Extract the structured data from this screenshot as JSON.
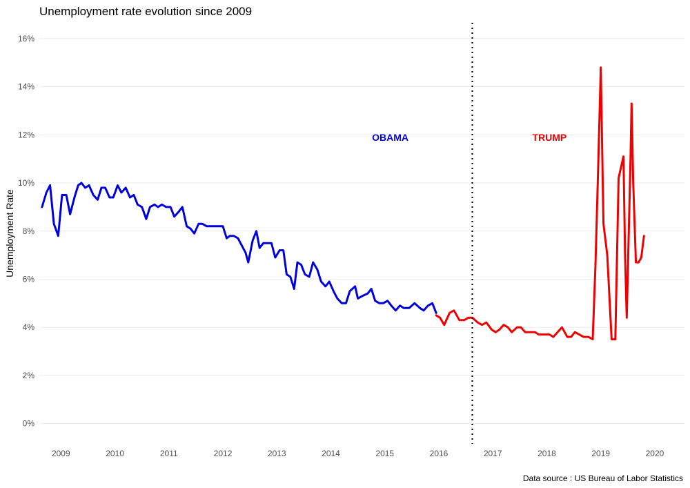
{
  "chart_data": {
    "type": "line",
    "title": "Unemployment rate evolution since 2009",
    "xlabel": "",
    "ylabel": "Unemployment Rate",
    "caption": "Data source : US Bureau of Labor Statistics",
    "xlim": [
      2008.6,
      2020.55
    ],
    "ylim": [
      -0.9,
      16.8
    ],
    "x_ticks": [
      2009,
      2010,
      2011,
      2012,
      2013,
      2014,
      2015,
      2016,
      2017,
      2018,
      2019,
      2020
    ],
    "x_tick_labels": [
      "2009",
      "2010",
      "2011",
      "2012",
      "2013",
      "2014",
      "2015",
      "2016",
      "2017",
      "2018",
      "2019",
      "2020"
    ],
    "y_ticks": [
      0,
      2,
      4,
      6,
      8,
      10,
      12,
      14,
      16
    ],
    "y_tick_labels": [
      "0%",
      "2%",
      "4%",
      "6%",
      "8%",
      "10%",
      "12%",
      "14%",
      "16%"
    ],
    "grid": true,
    "divider_x": 2016.62,
    "annotations": [
      {
        "text": "OBAMA",
        "x": 2015.1,
        "y": 11.9,
        "color": "#0000ee"
      },
      {
        "text": "TRUMP",
        "x": 2018.05,
        "y": 11.9,
        "color": "#ee0000"
      }
    ],
    "series": [
      {
        "color": "#0000dd",
        "points": [
          [
            2008.65,
            9.0
          ],
          [
            2008.73,
            9.6
          ],
          [
            2008.8,
            9.9
          ],
          [
            2008.87,
            8.3
          ],
          [
            2008.95,
            7.8
          ],
          [
            2009.02,
            9.5
          ],
          [
            2009.1,
            9.5
          ],
          [
            2009.17,
            8.7
          ],
          [
            2009.25,
            9.4
          ],
          [
            2009.32,
            9.9
          ],
          [
            2009.38,
            10.0
          ],
          [
            2009.45,
            9.8
          ],
          [
            2009.52,
            9.9
          ],
          [
            2009.6,
            9.5
          ],
          [
            2009.68,
            9.3
          ],
          [
            2009.75,
            9.8
          ],
          [
            2009.82,
            9.8
          ],
          [
            2009.9,
            9.4
          ],
          [
            2009.97,
            9.4
          ],
          [
            2010.05,
            9.9
          ],
          [
            2010.12,
            9.6
          ],
          [
            2010.2,
            9.8
          ],
          [
            2010.28,
            9.4
          ],
          [
            2010.35,
            9.5
          ],
          [
            2010.42,
            9.1
          ],
          [
            2010.5,
            9.0
          ],
          [
            2010.58,
            8.5
          ],
          [
            2010.65,
            9.0
          ],
          [
            2010.73,
            9.1
          ],
          [
            2010.8,
            9.0
          ],
          [
            2010.87,
            9.1
          ],
          [
            2010.95,
            9.0
          ],
          [
            2011.03,
            9.0
          ],
          [
            2011.1,
            8.6
          ],
          [
            2011.18,
            8.8
          ],
          [
            2011.25,
            9.0
          ],
          [
            2011.33,
            8.2
          ],
          [
            2011.4,
            8.1
          ],
          [
            2011.47,
            7.9
          ],
          [
            2011.55,
            8.3
          ],
          [
            2011.62,
            8.3
          ],
          [
            2011.7,
            8.2
          ],
          [
            2011.78,
            8.2
          ],
          [
            2011.85,
            8.2
          ],
          [
            2011.93,
            8.2
          ],
          [
            2012.0,
            8.2
          ],
          [
            2012.07,
            7.7
          ],
          [
            2012.13,
            7.8
          ],
          [
            2012.2,
            7.8
          ],
          [
            2012.28,
            7.7
          ],
          [
            2012.35,
            7.4
          ],
          [
            2012.42,
            7.1
          ],
          [
            2012.47,
            6.7
          ],
          [
            2012.55,
            7.6
          ],
          [
            2012.62,
            8.0
          ],
          [
            2012.68,
            7.3
          ],
          [
            2012.75,
            7.5
          ],
          [
            2012.82,
            7.5
          ],
          [
            2012.9,
            7.5
          ],
          [
            2012.97,
            6.9
          ],
          [
            2013.05,
            7.2
          ],
          [
            2013.12,
            7.2
          ],
          [
            2013.18,
            6.2
          ],
          [
            2013.25,
            6.1
          ],
          [
            2013.32,
            5.6
          ],
          [
            2013.38,
            6.7
          ],
          [
            2013.45,
            6.6
          ],
          [
            2013.52,
            6.2
          ],
          [
            2013.6,
            6.1
          ],
          [
            2013.67,
            6.7
          ],
          [
            2013.75,
            6.4
          ],
          [
            2013.82,
            5.9
          ],
          [
            2013.9,
            5.7
          ],
          [
            2013.97,
            5.9
          ],
          [
            2014.05,
            5.5
          ],
          [
            2014.12,
            5.2
          ],
          [
            2014.2,
            5.0
          ],
          [
            2014.28,
            5.0
          ],
          [
            2014.35,
            5.5
          ],
          [
            2014.45,
            5.7
          ],
          [
            2014.5,
            5.2
          ],
          [
            2014.58,
            5.3
          ],
          [
            2014.68,
            5.4
          ],
          [
            2014.75,
            5.6
          ],
          [
            2014.82,
            5.1
          ],
          [
            2014.9,
            5.0
          ],
          [
            2014.97,
            5.0
          ],
          [
            2015.05,
            5.1
          ],
          [
            2015.12,
            4.9
          ],
          [
            2015.2,
            4.7
          ],
          [
            2015.28,
            4.9
          ],
          [
            2015.35,
            4.8
          ],
          [
            2015.45,
            4.8
          ],
          [
            2015.55,
            5.0
          ],
          [
            2015.65,
            4.8
          ],
          [
            2015.72,
            4.7
          ],
          [
            2015.8,
            4.9
          ],
          [
            2015.88,
            5.0
          ],
          [
            2015.95,
            4.6
          ]
        ]
      },
      {
        "color": "#ee0000",
        "points": [
          [
            2015.95,
            4.5
          ],
          [
            2016.02,
            4.4
          ],
          [
            2016.1,
            4.1
          ],
          [
            2016.2,
            4.6
          ],
          [
            2016.28,
            4.7
          ],
          [
            2016.38,
            4.3
          ],
          [
            2016.47,
            4.3
          ],
          [
            2016.55,
            4.4
          ],
          [
            2016.62,
            4.4
          ],
          [
            2016.72,
            4.2
          ],
          [
            2016.8,
            4.1
          ],
          [
            2016.88,
            4.2
          ],
          [
            2016.98,
            3.9
          ],
          [
            2017.05,
            3.8
          ],
          [
            2017.12,
            3.9
          ],
          [
            2017.2,
            4.1
          ],
          [
            2017.28,
            4.0
          ],
          [
            2017.35,
            3.8
          ],
          [
            2017.45,
            4.0
          ],
          [
            2017.52,
            4.0
          ],
          [
            2017.6,
            3.8
          ],
          [
            2017.68,
            3.8
          ],
          [
            2017.78,
            3.8
          ],
          [
            2017.85,
            3.7
          ],
          [
            2017.95,
            3.7
          ],
          [
            2018.05,
            3.7
          ],
          [
            2018.12,
            3.6
          ],
          [
            2018.2,
            3.8
          ],
          [
            2018.28,
            4.0
          ],
          [
            2018.38,
            3.6
          ],
          [
            2018.45,
            3.6
          ],
          [
            2018.52,
            3.8
          ],
          [
            2018.6,
            3.7
          ],
          [
            2018.68,
            3.6
          ],
          [
            2018.77,
            3.6
          ],
          [
            2018.85,
            3.5
          ],
          [
            2018.9,
            6.5
          ],
          [
            2018.95,
            10.5
          ],
          [
            2019.0,
            14.8
          ],
          [
            2019.05,
            8.3
          ],
          [
            2019.12,
            7.0
          ],
          [
            2019.2,
            3.5
          ],
          [
            2019.27,
            3.5
          ],
          [
            2019.33,
            10.2
          ],
          [
            2019.4,
            10.9
          ],
          [
            2019.42,
            11.1
          ],
          [
            2019.45,
            7.0
          ],
          [
            2019.48,
            4.4
          ],
          [
            2019.55,
            11.0
          ],
          [
            2019.57,
            13.3
          ],
          [
            2019.6,
            10.0
          ],
          [
            2019.65,
            6.7
          ],
          [
            2019.7,
            6.7
          ],
          [
            2019.75,
            6.9
          ],
          [
            2019.8,
            7.8
          ]
        ]
      }
    ]
  }
}
